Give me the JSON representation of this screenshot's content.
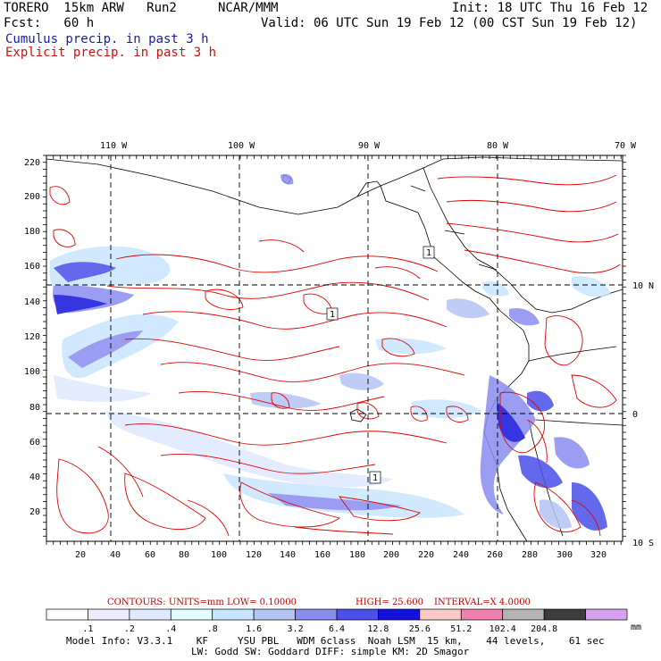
{
  "header": {
    "model": "TORERO  15km ARW   Run2",
    "org": "NCAR/MMM",
    "init": "Init: 18 UTC Thu 16 Feb 12",
    "fcst": "Fcst:   60 h",
    "valid": "Valid: 06 UTC Sun 19 Feb 12 (00 CST Sun 19 Feb 12)",
    "field_blue": "Cumulus precip. in past 3 h",
    "field_red": "Explicit precip. in past 3 h"
  },
  "axes": {
    "top_lon": [
      "110 W",
      "100 W",
      "90 W",
      "80 W",
      "70 W"
    ],
    "right_lat": [
      "10 N",
      "0",
      "10 S"
    ],
    "left_grid": [
      "220",
      "200",
      "180",
      "160",
      "140",
      "120",
      "100",
      "80",
      "60",
      "40",
      "20"
    ],
    "bottom_grid": [
      "20",
      "40",
      "60",
      "80",
      "100",
      "120",
      "140",
      "160",
      "180",
      "200",
      "220",
      "240",
      "260",
      "280",
      "300",
      "320"
    ]
  },
  "contour_labels": [
    "1",
    "1",
    "1"
  ],
  "contour_info": {
    "contours": "CONTOURS:  UNITS=mm  LOW= 0.10000",
    "high": "HIGH=  25.600",
    "interval": "INTERVAL=X  4.0000"
  },
  "colorbar": {
    "labels": [
      ".1",
      ".2",
      ".4",
      ".8",
      "1.6",
      "3.2",
      "6.4",
      "12.8",
      "25.6",
      "51.2",
      "102.4",
      "204.8"
    ],
    "unit": "mm",
    "colors": [
      "#ffffff",
      "#ececff",
      "#dfe9ff",
      "#e4fbff",
      "#c8e6ff",
      "#b4c4f4",
      "#8a8cf0",
      "#4a50e8",
      "#1212dc",
      "#fbc8c8",
      "#f080b0",
      "#b4b4b4",
      "#3c3c3c",
      "#d8a0f0"
    ]
  },
  "model_info": {
    "line1": "Model Info: V3.3.1    KF     YSU PBL   WDM 6class  Noah LSM  15 km,    44 levels,    61 sec",
    "line2": "LW: Godd SW: Goddard DIFF: simple KM: 2D Smagor"
  }
}
